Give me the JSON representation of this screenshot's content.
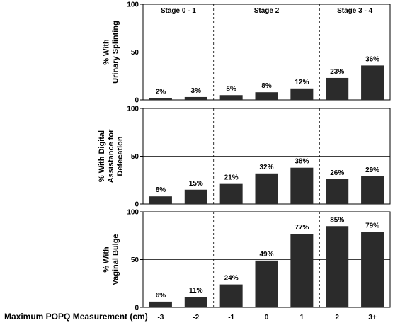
{
  "chart_data": {
    "type": "bar",
    "xlabel": "Maximum POPQ Measurement (cm)",
    "categories": [
      "-3",
      "-2",
      "-1",
      "0",
      "1",
      "2",
      "3+"
    ],
    "stages": [
      {
        "label": "Stage 0 - 1",
        "categories": [
          "-3",
          "-2"
        ]
      },
      {
        "label": "Stage 2",
        "categories": [
          "-1",
          "0",
          "1"
        ]
      },
      {
        "label": "Stage 3 - 4",
        "categories": [
          "2",
          "3+"
        ]
      }
    ],
    "bar_color": "#2b2b2b",
    "grid": true,
    "panels": [
      {
        "ylabel_lines": [
          "% With",
          "Urinary Splinting"
        ],
        "ylim": [
          0,
          100
        ],
        "yticks": [
          0,
          50,
          100
        ],
        "values": [
          2,
          3,
          5,
          8,
          12,
          23,
          36
        ],
        "value_labels": [
          "2%",
          "3%",
          "5%",
          "8%",
          "12%",
          "23%",
          "36%"
        ]
      },
      {
        "ylabel_lines": [
          "% With Digital",
          "Assistance for",
          "Defecation"
        ],
        "ylim": [
          0,
          100
        ],
        "yticks": [
          0,
          50,
          100
        ],
        "values": [
          8,
          15,
          21,
          32,
          38,
          26,
          29
        ],
        "value_labels": [
          "8%",
          "15%",
          "21%",
          "32%",
          "38%",
          "26%",
          "29%"
        ]
      },
      {
        "ylabel_lines": [
          "% With",
          "Vaginal Bulge"
        ],
        "ylim": [
          0,
          100
        ],
        "yticks": [
          0,
          50,
          100
        ],
        "values": [
          6,
          11,
          24,
          49,
          77,
          85,
          79
        ],
        "value_labels": [
          "6%",
          "11%",
          "24%",
          "49%",
          "77%",
          "85%",
          "79%"
        ]
      }
    ]
  }
}
